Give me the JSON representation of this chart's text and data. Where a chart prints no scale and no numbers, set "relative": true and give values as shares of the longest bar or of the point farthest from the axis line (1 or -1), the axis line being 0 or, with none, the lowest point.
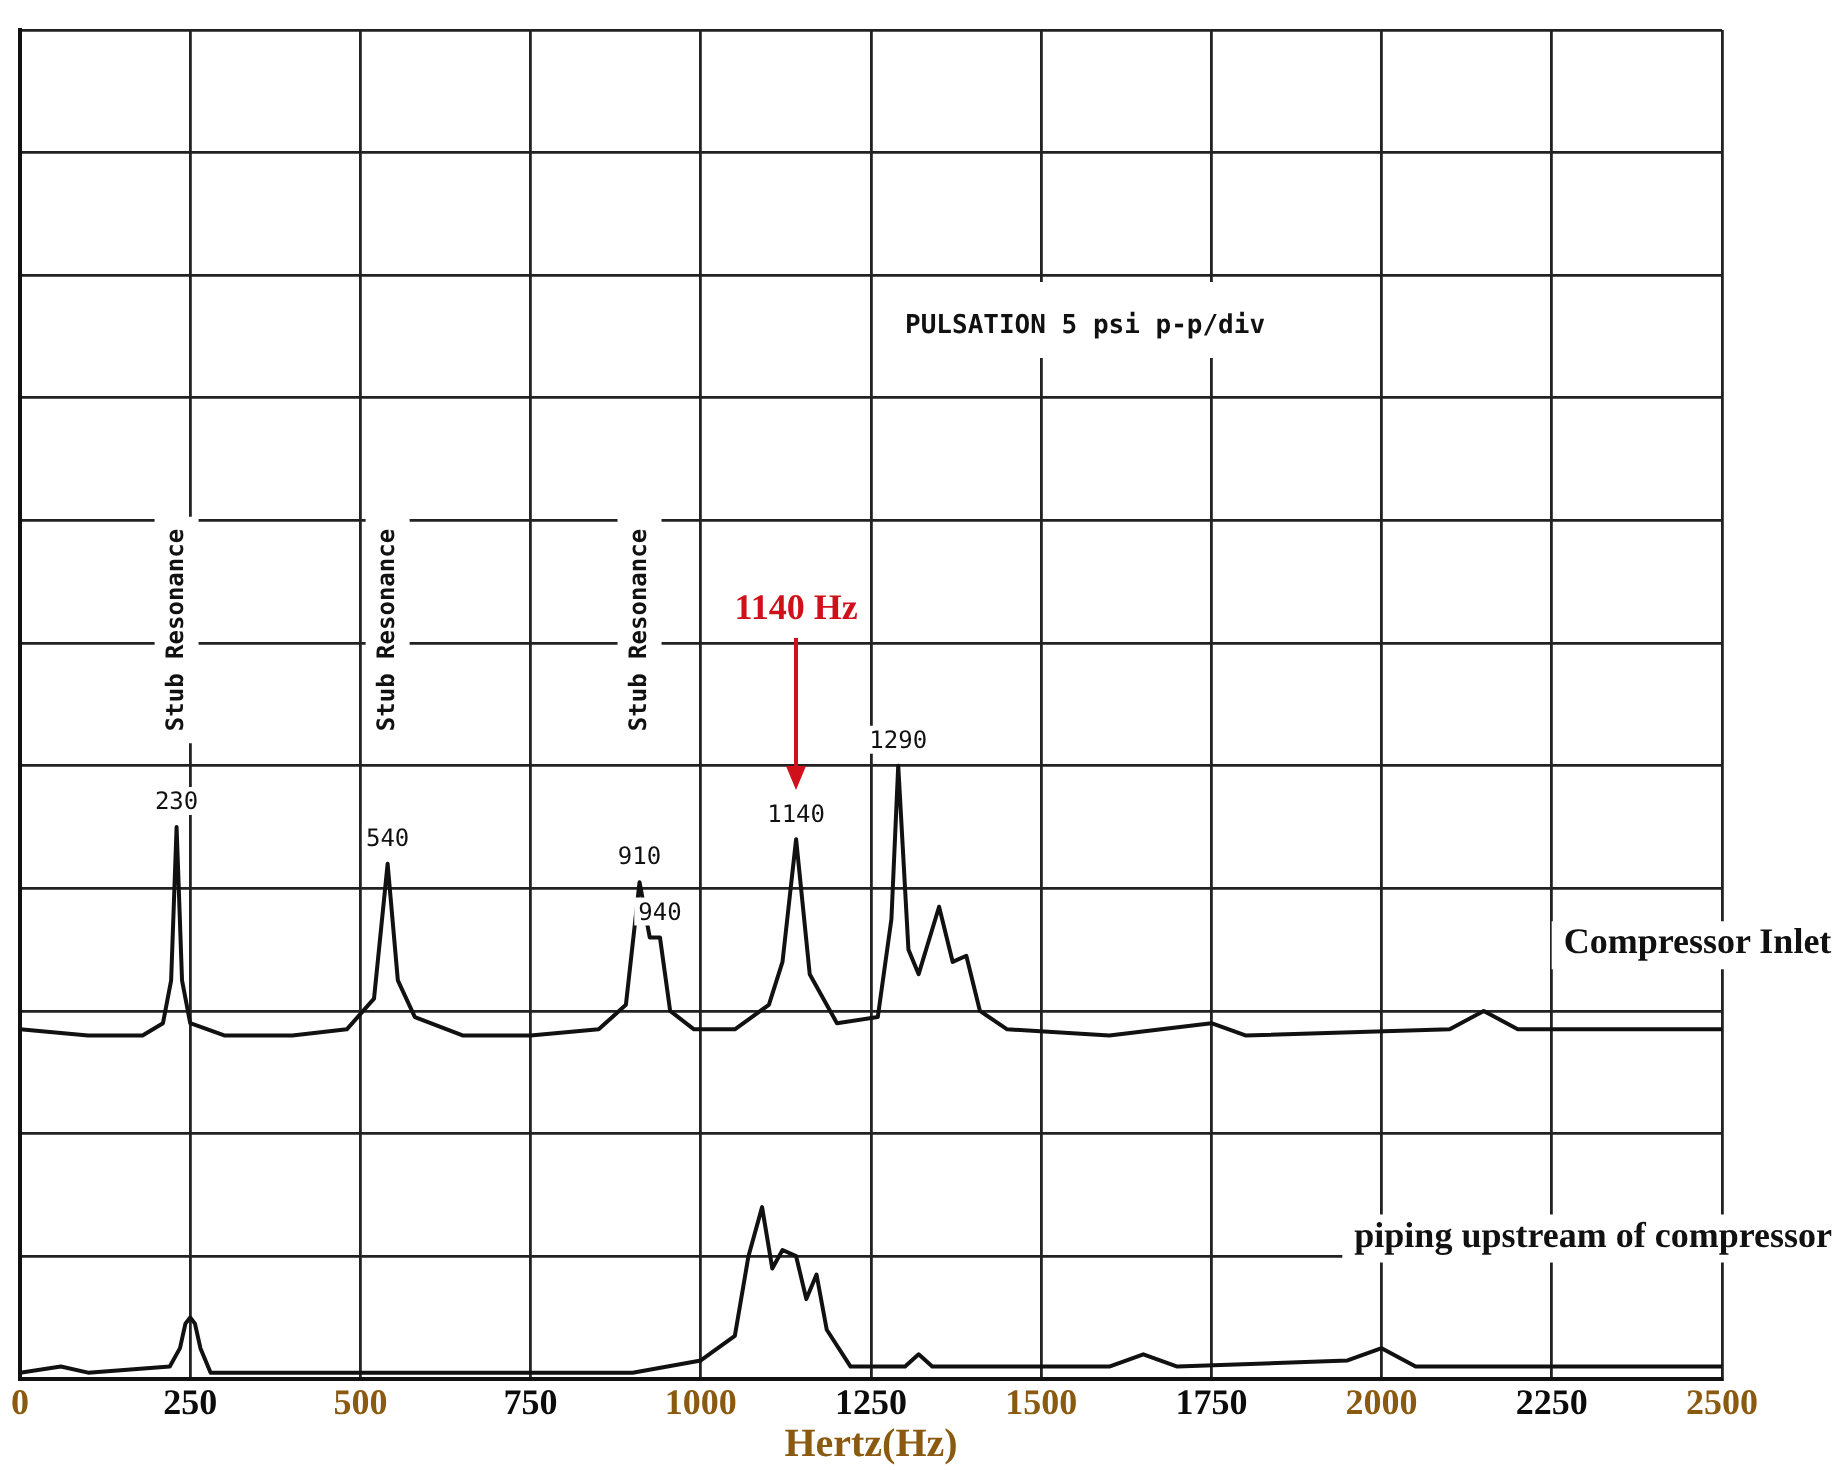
{
  "chart_data": {
    "type": "line",
    "relative": true,
    "xlabel": "Hertz(Hz)",
    "xlim": [
      0,
      2500
    ],
    "xticks": [
      0,
      250,
      500,
      750,
      1000,
      1250,
      1500,
      1750,
      2000,
      2250,
      2500
    ],
    "grid": true,
    "legend": false,
    "marker": "none",
    "line_style": "solid",
    "series": [
      {
        "name": "Compressor Inlet",
        "color": "#111111",
        "x": [
          0,
          100,
          180,
          210,
          222,
          230,
          238,
          250,
          300,
          400,
          480,
          520,
          540,
          555,
          580,
          650,
          750,
          850,
          890,
          910,
          925,
          940,
          955,
          990,
          1050,
          1100,
          1120,
          1140,
          1160,
          1200,
          1260,
          1280,
          1290,
          1305,
          1320,
          1350,
          1370,
          1390,
          1410,
          1450,
          1600,
          1750,
          1800,
          2100,
          2150,
          2200,
          2500
        ],
        "values": [
          0.57,
          0.56,
          0.56,
          0.58,
          0.65,
          0.9,
          0.65,
          0.58,
          0.56,
          0.56,
          0.57,
          0.62,
          0.84,
          0.65,
          0.59,
          0.56,
          0.56,
          0.57,
          0.61,
          0.81,
          0.72,
          0.72,
          0.6,
          0.57,
          0.57,
          0.61,
          0.68,
          0.88,
          0.66,
          0.58,
          0.59,
          0.75,
          1,
          0.7,
          0.66,
          0.77,
          0.68,
          0.69,
          0.6,
          0.57,
          0.56,
          0.58,
          0.56,
          0.57,
          0.6,
          0.57,
          0.57
        ]
      },
      {
        "name": "piping upstream of compressor",
        "color": "#111111",
        "x": [
          0,
          60,
          100,
          220,
          235,
          243,
          250,
          257,
          265,
          280,
          600,
          900,
          1000,
          1050,
          1070,
          1090,
          1105,
          1120,
          1140,
          1155,
          1170,
          1185,
          1220,
          1300,
          1320,
          1340,
          1600,
          1650,
          1700,
          1950,
          2000,
          2050,
          2500
        ],
        "values": [
          0.01,
          0.02,
          0.01,
          0.02,
          0.05,
          0.09,
          0.1,
          0.09,
          0.05,
          0.01,
          0.01,
          0.01,
          0.03,
          0.07,
          0.2,
          0.28,
          0.18,
          0.21,
          0.2,
          0.13,
          0.17,
          0.08,
          0.02,
          0.02,
          0.04,
          0.02,
          0.02,
          0.04,
          0.02,
          0.03,
          0.05,
          0.02,
          0.02
        ]
      }
    ],
    "annotations": [
      "PULSATION 5 psi p-p/div",
      {
        "text": "230",
        "x": 230,
        "y": 0.9
      },
      {
        "text": "540",
        "x": 540,
        "y": 0.84
      },
      {
        "text": "910",
        "x": 910,
        "y": 0.81
      },
      {
        "text": "940",
        "x": 940,
        "y": 0.72
      },
      {
        "text": "1140",
        "x": 1140,
        "y": 0.88
      },
      {
        "text": "1290",
        "x": 1290,
        "y": 1
      },
      "Stub Resonance",
      "Stub Resonance",
      "Stub Resonance",
      "1140 Hz"
    ]
  }
}
